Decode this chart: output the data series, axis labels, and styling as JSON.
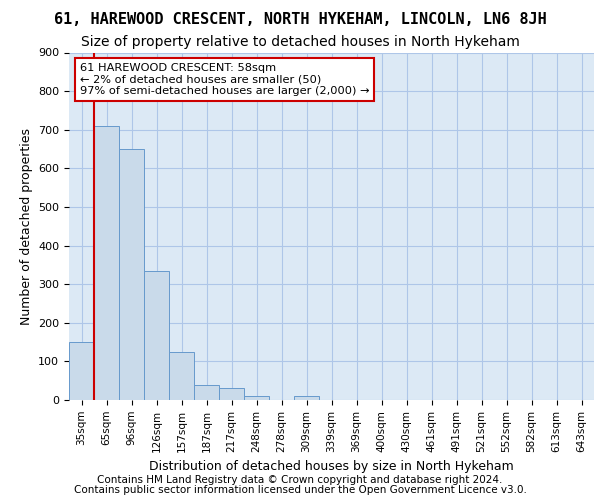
{
  "title_line1": "61, HAREWOOD CRESCENT, NORTH HYKEHAM, LINCOLN, LN6 8JH",
  "title_line2": "Size of property relative to detached houses in North Hykeham",
  "xlabel": "Distribution of detached houses by size in North Hykeham",
  "ylabel": "Number of detached properties",
  "footnote1": "Contains HM Land Registry data © Crown copyright and database right 2024.",
  "footnote2": "Contains public sector information licensed under the Open Government Licence v3.0.",
  "bin_labels": [
    "35sqm",
    "65sqm",
    "96sqm",
    "126sqm",
    "157sqm",
    "187sqm",
    "217sqm",
    "248sqm",
    "278sqm",
    "309sqm",
    "339sqm",
    "369sqm",
    "400sqm",
    "430sqm",
    "461sqm",
    "491sqm",
    "521sqm",
    "552sqm",
    "582sqm",
    "613sqm",
    "643sqm"
  ],
  "bar_heights": [
    150,
    710,
    650,
    335,
    125,
    40,
    30,
    10,
    0,
    10,
    0,
    0,
    0,
    0,
    0,
    0,
    0,
    0,
    0,
    0,
    0
  ],
  "bar_color": "#c9daea",
  "bar_edge_color": "#6699cc",
  "annotation_box_text": "61 HAREWOOD CRESCENT: 58sqm\n← 2% of detached houses are smaller (50)\n97% of semi-detached houses are larger (2,000) →",
  "annotation_box_color": "#ffffff",
  "annotation_box_edge_color": "#cc0000",
  "vline_color": "#cc0000",
  "ylim": [
    0,
    900
  ],
  "yticks": [
    0,
    100,
    200,
    300,
    400,
    500,
    600,
    700,
    800,
    900
  ],
  "grid_color": "#aec6e8",
  "bg_color": "#dce9f5",
  "title_fontsize": 11,
  "subtitle_fontsize": 10,
  "tick_fontsize": 8,
  "label_fontsize": 9,
  "footnote_fontsize": 7.5
}
